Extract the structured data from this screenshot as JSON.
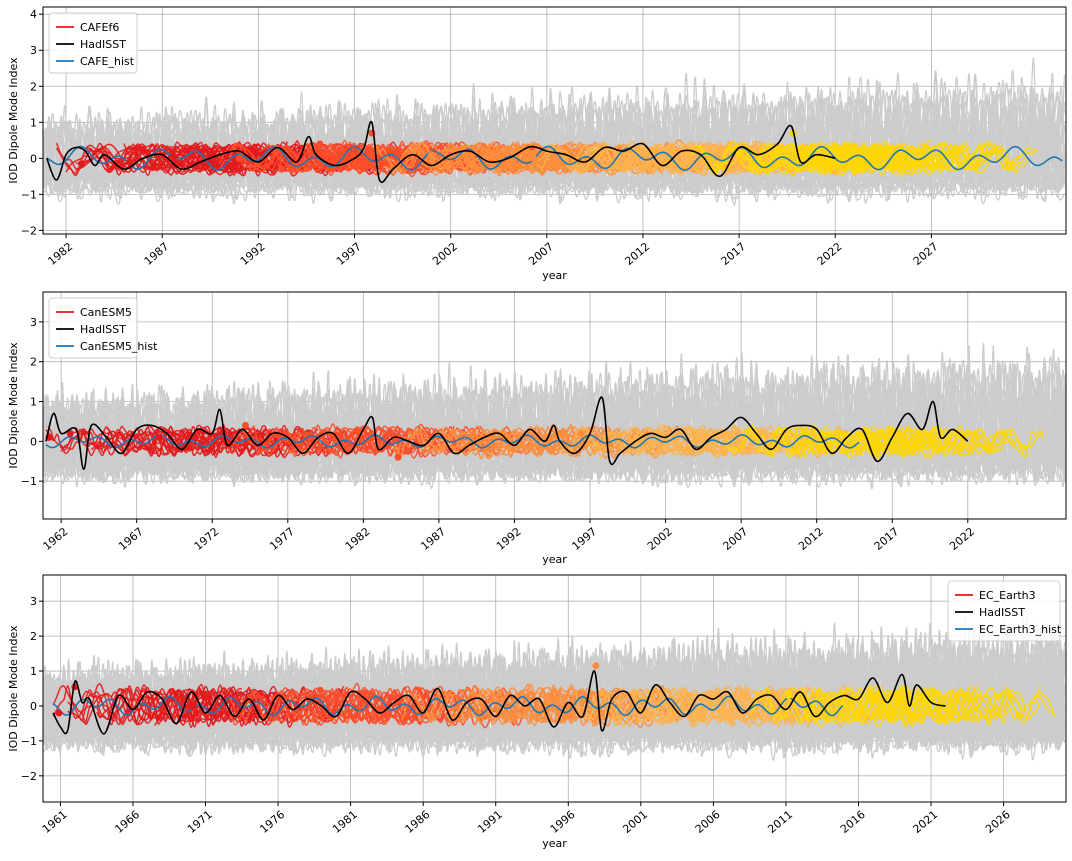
{
  "colors": {
    "ensemble": "#cccccc",
    "obs": "#000000",
    "hist": "#1f77b4",
    "forecast_legend": "#e31a1c",
    "ramp": [
      "#e31a1c",
      "#fc4e2a",
      "#fd8d3c",
      "#feb24c",
      "#ffd700"
    ]
  },
  "chart_data": [
    {
      "type": "line",
      "xlabel": "year",
      "ylabel": "IOD Dipole Mode Index",
      "xlim": [
        1980.8,
        2034.0
      ],
      "ylim": [
        -2.1,
        4.2
      ],
      "yticks": [
        "−2",
        "−1",
        "0",
        "1",
        "2",
        "3",
        "4"
      ],
      "ytick_values": [
        -2,
        -1,
        0,
        1,
        2,
        3,
        4
      ],
      "xticks": [
        "1982",
        "1987",
        "1992",
        "1997",
        "2002",
        "2007",
        "2012",
        "2017",
        "2022",
        "2027"
      ],
      "xtick_values": [
        1982,
        1987,
        1992,
        1997,
        2002,
        2007,
        2012,
        2017,
        2022,
        2027
      ],
      "legend_position": "top-left",
      "series": [
        {
          "name": "CAFEf6",
          "role": "forecast",
          "init_start": 1981.5,
          "init_end": 2022.5,
          "init_step": 0.5,
          "lead_years": 10,
          "spread_min": -1.8,
          "spread_max": 3.2,
          "forecast_amp": 0.3
        },
        {
          "name": "HadISST",
          "role": "obs",
          "start": 1981.0,
          "end": 2022.0,
          "x": [
            1981.0,
            1981.5,
            1982.0,
            1982.5,
            1983.0,
            1983.5,
            1984.0,
            1985.0,
            1986.0,
            1987.0,
            1988.0,
            1989.0,
            1990.0,
            1991.0,
            1992.0,
            1993.0,
            1994.0,
            1994.6,
            1995.0,
            1996.0,
            1997.0,
            1997.5,
            1997.9,
            1998.3,
            1999.0,
            2000.0,
            2001.0,
            2002.0,
            2003.0,
            2004.0,
            2005.0,
            2006.0,
            2006.5,
            2007.0,
            2008.0,
            2009.0,
            2010.0,
            2011.0,
            2012.0,
            2013.0,
            2014.0,
            2015.0,
            2016.0,
            2017.0,
            2018.0,
            2019.0,
            2019.7,
            2020.2,
            2021.0,
            2022.0
          ],
          "y": [
            0.0,
            -0.6,
            0.1,
            0.3,
            0.2,
            -0.2,
            0.1,
            -0.3,
            0.0,
            0.1,
            -0.3,
            -0.1,
            0.1,
            0.2,
            -0.1,
            0.3,
            -0.1,
            0.6,
            0.1,
            -0.2,
            0.0,
            0.3,
            1.0,
            -0.6,
            -0.3,
            0.1,
            -0.2,
            0.1,
            0.2,
            -0.1,
            0.0,
            0.3,
            0.3,
            0.2,
            0.1,
            -0.1,
            0.3,
            0.2,
            0.4,
            -0.2,
            0.2,
            0.1,
            -0.5,
            0.3,
            0.1,
            0.4,
            0.9,
            -0.1,
            0.1,
            0.0
          ]
        },
        {
          "name": "CAFE_hist",
          "role": "hist",
          "start": 1981.0,
          "end": 2034.0,
          "amp": 0.3
        }
      ],
      "markers": [
        [
          1982.8,
          -0.15
        ],
        [
          1985.3,
          -0.1
        ],
        [
          1987.6,
          0.05
        ],
        [
          1991.0,
          0.0
        ],
        [
          1993.2,
          -0.3
        ],
        [
          1995.2,
          0.4
        ],
        [
          1997.9,
          0.7
        ],
        [
          2001.0,
          0.1
        ],
        [
          2006.3,
          0.0
        ],
        [
          2011.0,
          -0.3
        ],
        [
          2016.0,
          0.1
        ],
        [
          2019.8,
          0.7
        ]
      ]
    },
    {
      "type": "line",
      "xlabel": "year",
      "ylabel": "IOD Dipole Mode Index",
      "xlim": [
        1960.8,
        2028.5
      ],
      "ylim": [
        -1.95,
        3.75
      ],
      "yticks": [
        "−1",
        "0",
        "1",
        "2",
        "3"
      ],
      "ytick_values": [
        -1,
        0,
        1,
        2,
        3
      ],
      "xticks": [
        "1962",
        "1967",
        "1972",
        "1977",
        "1982",
        "1987",
        "1992",
        "1997",
        "2002",
        "2007",
        "2012",
        "2017",
        "2022"
      ],
      "xtick_values": [
        1962,
        1967,
        1972,
        1977,
        1982,
        1987,
        1992,
        1997,
        2002,
        2007,
        2012,
        2017,
        2022
      ],
      "legend_position": "top-left",
      "series": [
        {
          "name": "CanESM5",
          "role": "forecast",
          "init_start": 1961.0,
          "init_end": 2017.0,
          "init_step": 1.0,
          "lead_years": 10,
          "spread_min": -1.6,
          "spread_max": 2.9,
          "forecast_amp": 0.25
        },
        {
          "name": "HadISST",
          "role": "obs",
          "start": 1961.0,
          "end": 2022.0,
          "x": [
            1961.0,
            1961.5,
            1962.0,
            1963.0,
            1963.5,
            1964.0,
            1965.0,
            1966.0,
            1967.0,
            1968.0,
            1969.0,
            1970.0,
            1971.0,
            1972.0,
            1972.5,
            1973.0,
            1974.0,
            1975.0,
            1976.0,
            1977.0,
            1978.0,
            1979.0,
            1980.0,
            1981.0,
            1982.0,
            1982.6,
            1983.0,
            1984.0,
            1985.0,
            1986.0,
            1987.0,
            1988.0,
            1989.0,
            1990.0,
            1991.0,
            1992.0,
            1993.0,
            1994.0,
            1994.6,
            1995.0,
            1996.0,
            1997.0,
            1997.8,
            1998.3,
            1999.0,
            2000.0,
            2001.0,
            2002.0,
            2003.0,
            2004.0,
            2005.0,
            2006.0,
            2007.0,
            2008.0,
            2009.0,
            2010.0,
            2011.0,
            2012.0,
            2013.0,
            2014.0,
            2015.0,
            2016.0,
            2017.0,
            2018.0,
            2019.0,
            2019.7,
            2020.2,
            2021.0,
            2022.0
          ],
          "y": [
            0.0,
            0.7,
            0.2,
            0.3,
            -0.7,
            0.4,
            0.1,
            -0.3,
            0.3,
            0.4,
            0.2,
            -0.2,
            0.3,
            0.2,
            0.8,
            -0.1,
            0.3,
            -0.1,
            0.2,
            0.1,
            -0.3,
            0.1,
            0.2,
            -0.3,
            0.3,
            0.6,
            -0.2,
            0.1,
            0.0,
            -0.1,
            0.2,
            -0.3,
            -0.1,
            0.1,
            0.2,
            -0.1,
            0.3,
            0.0,
            0.4,
            0.0,
            -0.3,
            0.2,
            1.1,
            -0.5,
            -0.3,
            0.0,
            0.2,
            0.1,
            0.3,
            -0.2,
            0.1,
            0.3,
            0.6,
            0.2,
            -0.2,
            0.3,
            0.4,
            0.3,
            -0.3,
            0.1,
            0.3,
            -0.5,
            0.1,
            0.7,
            0.3,
            1.0,
            0.1,
            0.3,
            0.0
          ]
        },
        {
          "name": "CanESM5_hist",
          "role": "hist",
          "start": 1961.0,
          "end": 2015.0,
          "amp": 0.15
        }
      ],
      "markers": [
        [
          1961.2,
          0.1
        ],
        [
          1962.6,
          0.2
        ],
        [
          1968.5,
          0.1
        ],
        [
          1974.2,
          0.4
        ],
        [
          1984.3,
          -0.4
        ],
        [
          1987.2,
          -0.2
        ],
        [
          1996.4,
          0.2
        ],
        [
          2005.9,
          -0.3
        ],
        [
          2015.6,
          -0.2
        ]
      ]
    },
    {
      "type": "line",
      "xlabel": "year",
      "ylabel": "IOD Dipole Mode Index",
      "xlim": [
        1959.8,
        2030.3
      ],
      "ylim": [
        -2.75,
        3.75
      ],
      "yticks": [
        "−2",
        "−1",
        "0",
        "1",
        "2",
        "3"
      ],
      "ytick_values": [
        -2,
        -1,
        0,
        1,
        2,
        3
      ],
      "xticks": [
        "1961",
        "1966",
        "1971",
        "1976",
        "1981",
        "1986",
        "1991",
        "1996",
        "2001",
        "2006",
        "2011",
        "2016",
        "2021",
        "2026"
      ],
      "xtick_values": [
        1961,
        1966,
        1971,
        1976,
        1981,
        1986,
        1991,
        1996,
        2001,
        2006,
        2011,
        2016,
        2021,
        2026
      ],
      "legend_position": "top-right",
      "series": [
        {
          "name": "EC_Earth3",
          "role": "forecast",
          "init_start": 1960.5,
          "init_end": 2019.5,
          "init_step": 1.0,
          "lead_years": 10,
          "spread_min": -2.2,
          "spread_max": 3.3,
          "forecast_amp": 0.4
        },
        {
          "name": "HadISST",
          "role": "obs",
          "start": 1960.5,
          "end": 2022.0,
          "x": [
            1960.5,
            1961.0,
            1961.5,
            1962.0,
            1962.5,
            1963.0,
            1964.0,
            1965.0,
            1966.0,
            1967.0,
            1968.0,
            1969.0,
            1970.0,
            1971.0,
            1972.0,
            1973.0,
            1974.0,
            1975.0,
            1976.0,
            1977.0,
            1978.0,
            1979.0,
            1980.0,
            1981.0,
            1982.0,
            1983.0,
            1984.0,
            1985.0,
            1986.0,
            1987.0,
            1988.0,
            1989.0,
            1990.0,
            1991.0,
            1992.0,
            1993.0,
            1994.0,
            1995.0,
            1996.0,
            1997.0,
            1997.8,
            1998.3,
            1999.0,
            2000.0,
            2001.0,
            2002.0,
            2003.0,
            2004.0,
            2005.0,
            2006.0,
            2007.0,
            2008.0,
            2009.0,
            2010.0,
            2011.0,
            2012.0,
            2013.0,
            2014.0,
            2015.0,
            2016.0,
            2017.0,
            2018.0,
            2019.0,
            2019.5,
            2020.0,
            2021.0,
            2022.0
          ],
          "y": [
            -0.2,
            -0.6,
            -0.7,
            0.7,
            0.1,
            0.2,
            -0.8,
            0.3,
            -0.1,
            0.4,
            0.2,
            -0.5,
            0.4,
            -0.2,
            0.3,
            -0.3,
            0.2,
            -0.4,
            0.3,
            -0.1,
            0.2,
            0.0,
            -0.3,
            0.4,
            0.2,
            -0.2,
            0.1,
            0.3,
            -0.2,
            0.5,
            -0.4,
            0.1,
            0.2,
            -0.3,
            0.3,
            0.0,
            0.2,
            -0.6,
            0.1,
            -0.3,
            1.0,
            -0.7,
            0.2,
            0.4,
            -0.2,
            0.6,
            0.1,
            -0.3,
            0.3,
            0.2,
            0.4,
            -0.2,
            0.2,
            0.3,
            -0.1,
            0.4,
            -0.3,
            0.1,
            0.3,
            0.2,
            0.8,
            0.1,
            0.9,
            0.0,
            0.6,
            0.1,
            0.0
          ]
        },
        {
          "name": "EC_Earth3_hist",
          "role": "hist",
          "start": 1960.5,
          "end": 2015.0,
          "amp": 0.25
        }
      ],
      "markers": [
        [
          1960.9,
          -0.2
        ],
        [
          1962.0,
          0.55
        ],
        [
          1970.1,
          0.0
        ],
        [
          1978.9,
          0.45
        ],
        [
          1996.1,
          -0.3
        ],
        [
          1997.9,
          1.15
        ],
        [
          2011.2,
          0.3
        ]
      ]
    }
  ]
}
